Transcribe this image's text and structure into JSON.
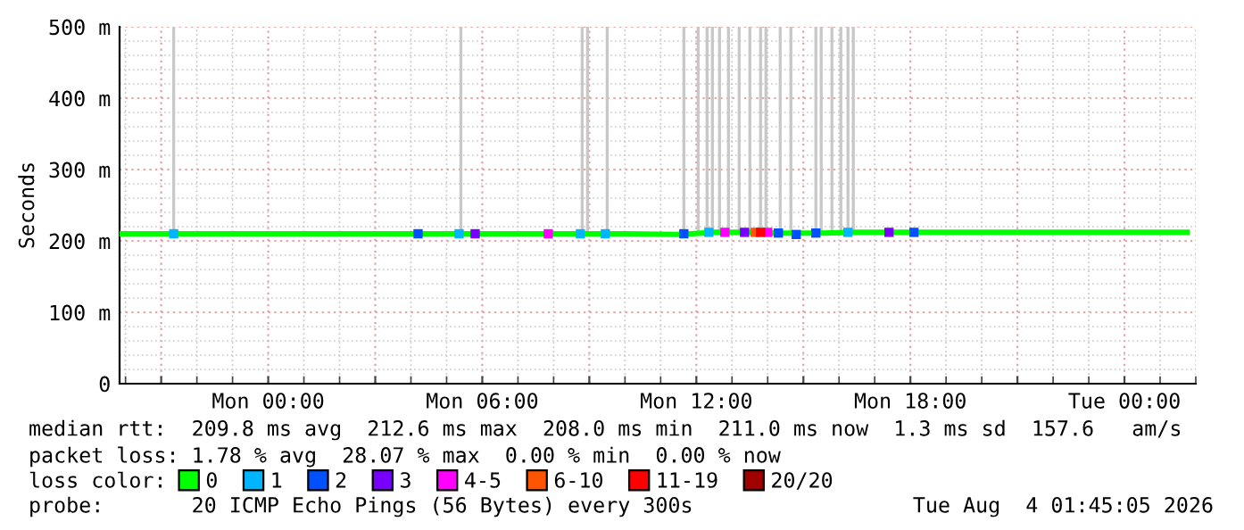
{
  "chart_data": {
    "type": "line",
    "ylabel": "Seconds",
    "xlim": [
      "2026-08-02T19:50",
      "2026-08-04T02:00"
    ],
    "xticks": [
      {
        "value": "2026-08-02T21:00",
        "label": null
      },
      {
        "value": "2026-08-03T00:00",
        "label": "Mon 00:00"
      },
      {
        "value": "2026-08-03T03:00",
        "label": null
      },
      {
        "value": "2026-08-03T06:00",
        "label": "Mon 06:00"
      },
      {
        "value": "2026-08-03T09:00",
        "label": null
      },
      {
        "value": "2026-08-03T12:00",
        "label": "Mon 12:00"
      },
      {
        "value": "2026-08-03T15:00",
        "label": null
      },
      {
        "value": "2026-08-03T18:00",
        "label": "Mon 18:00"
      },
      {
        "value": "2026-08-03T21:00",
        "label": null
      },
      {
        "value": "2026-08-04T00:00",
        "label": "Tue 00:00"
      }
    ],
    "ylim": [
      0,
      500
    ],
    "yticks": [
      0,
      {
        "value": 100,
        "label": "100 m"
      },
      {
        "value": 200,
        "label": "200 m"
      },
      {
        "value": 300,
        "label": "300 m"
      },
      {
        "value": 400,
        "label": "400 m"
      },
      {
        "value": 500,
        "label": "500 m"
      }
    ],
    "grid": true,
    "legend": "bottom",
    "legend_title": "loss color:",
    "series": [
      {
        "type": "bar",
        "color": "#c8c8c8",
        "x": [
          "2026-08-02T21:21",
          "2026-08-03T05:24",
          "2026-08-03T08:48",
          "2026-08-03T08:57",
          "2026-08-03T09:30",
          "2026-08-03T11:39",
          "2026-08-03T12:03",
          "2026-08-03T12:18",
          "2026-08-03T12:27",
          "2026-08-03T12:39",
          "2026-08-03T12:54",
          "2026-08-03T13:12",
          "2026-08-03T13:30",
          "2026-08-03T13:48",
          "2026-08-03T13:57",
          "2026-08-03T14:21",
          "2026-08-03T14:39",
          "2026-08-03T15:21",
          "2026-08-03T15:30",
          "2026-08-03T15:48",
          "2026-08-03T16:03",
          "2026-08-03T16:15",
          "2026-08-03T16:24"
        ],
        "base": [
          210,
          210,
          210,
          210,
          210,
          210,
          210,
          210,
          210,
          210,
          210,
          210,
          210,
          210,
          210,
          210,
          210,
          210,
          210,
          210,
          210,
          210,
          210
        ],
        "values": [
          290,
          290,
          290,
          290,
          290,
          290,
          290,
          290,
          290,
          290,
          290,
          290,
          290,
          290,
          290,
          290,
          290,
          290,
          290,
          290,
          290,
          290,
          290
        ]
      },
      {
        "name": "0",
        "color": "#00ff00",
        "x": [
          "2026-08-02T19:51",
          "2026-08-02T22:00",
          "2026-08-03T00:00",
          "2026-08-03T02:00",
          "2026-08-03T04:00",
          "2026-08-03T06:00",
          "2026-08-03T08:00",
          "2026-08-03T10:00",
          "2026-08-03T11:30",
          "2026-08-03T12:30",
          "2026-08-03T13:30",
          "2026-08-03T14:30",
          "2026-08-03T15:30",
          "2026-08-03T16:30",
          "2026-08-03T18:00",
          "2026-08-03T20:00",
          "2026-08-03T22:00",
          "2026-08-04T00:00",
          "2026-08-04T01:45"
        ],
        "values": [
          210,
          210,
          210,
          210,
          210,
          210,
          210,
          210,
          209,
          212,
          212,
          211,
          211,
          212,
          212,
          212,
          212,
          212,
          212
        ]
      },
      {
        "type": "scatter",
        "name": "1",
        "color": "#00b4ff",
        "x": [
          "2026-08-02T21:21",
          "2026-08-03T05:21",
          "2026-08-03T08:45",
          "2026-08-03T09:27",
          "2026-08-03T12:21",
          "2026-08-03T16:15"
        ],
        "values": [
          210,
          210,
          210,
          210,
          212,
          212
        ]
      },
      {
        "type": "scatter",
        "name": "2",
        "color": "#0050ff",
        "x": [
          "2026-08-03T04:12",
          "2026-08-03T11:39",
          "2026-08-03T14:18",
          "2026-08-03T14:48",
          "2026-08-03T15:21",
          "2026-08-03T18:06"
        ],
        "values": [
          210,
          210,
          211,
          209,
          211,
          212
        ]
      },
      {
        "type": "scatter",
        "name": "3",
        "color": "#7800ff",
        "x": [
          "2026-08-03T05:48",
          "2026-08-03T13:21",
          "2026-08-03T17:24"
        ],
        "values": [
          210,
          212,
          212
        ]
      },
      {
        "type": "scatter",
        "name": "4-5",
        "color": "#ff00ff",
        "x": [
          "2026-08-03T07:51",
          "2026-08-03T12:48",
          "2026-08-03T14:00"
        ],
        "values": [
          210,
          212,
          212
        ]
      },
      {
        "type": "scatter",
        "name": "6-10",
        "color": "#ff5500",
        "x": [
          "2026-08-03T13:39"
        ],
        "values": [
          212
        ]
      },
      {
        "type": "scatter",
        "name": "11-19",
        "color": "#ff0000",
        "x": [
          "2026-08-03T13:48"
        ],
        "values": [
          212
        ]
      },
      {
        "type": "scatter",
        "name": "20/20",
        "color": "#a10000"
      }
    ],
    "annotations": [
      "median rtt:  209.8 ms avg  212.6 ms max  208.0 ms min  211.0 ms now  1.3 ms sd  157.6   am/s",
      "packet loss: 1.78 % avg  28.07 % max  0.00 % min  0.00 % now",
      "probe:       20 ICMP Echo Pings (56 Bytes) every 300s",
      "Tue Aug  4 01:45:05 2026"
    ]
  }
}
